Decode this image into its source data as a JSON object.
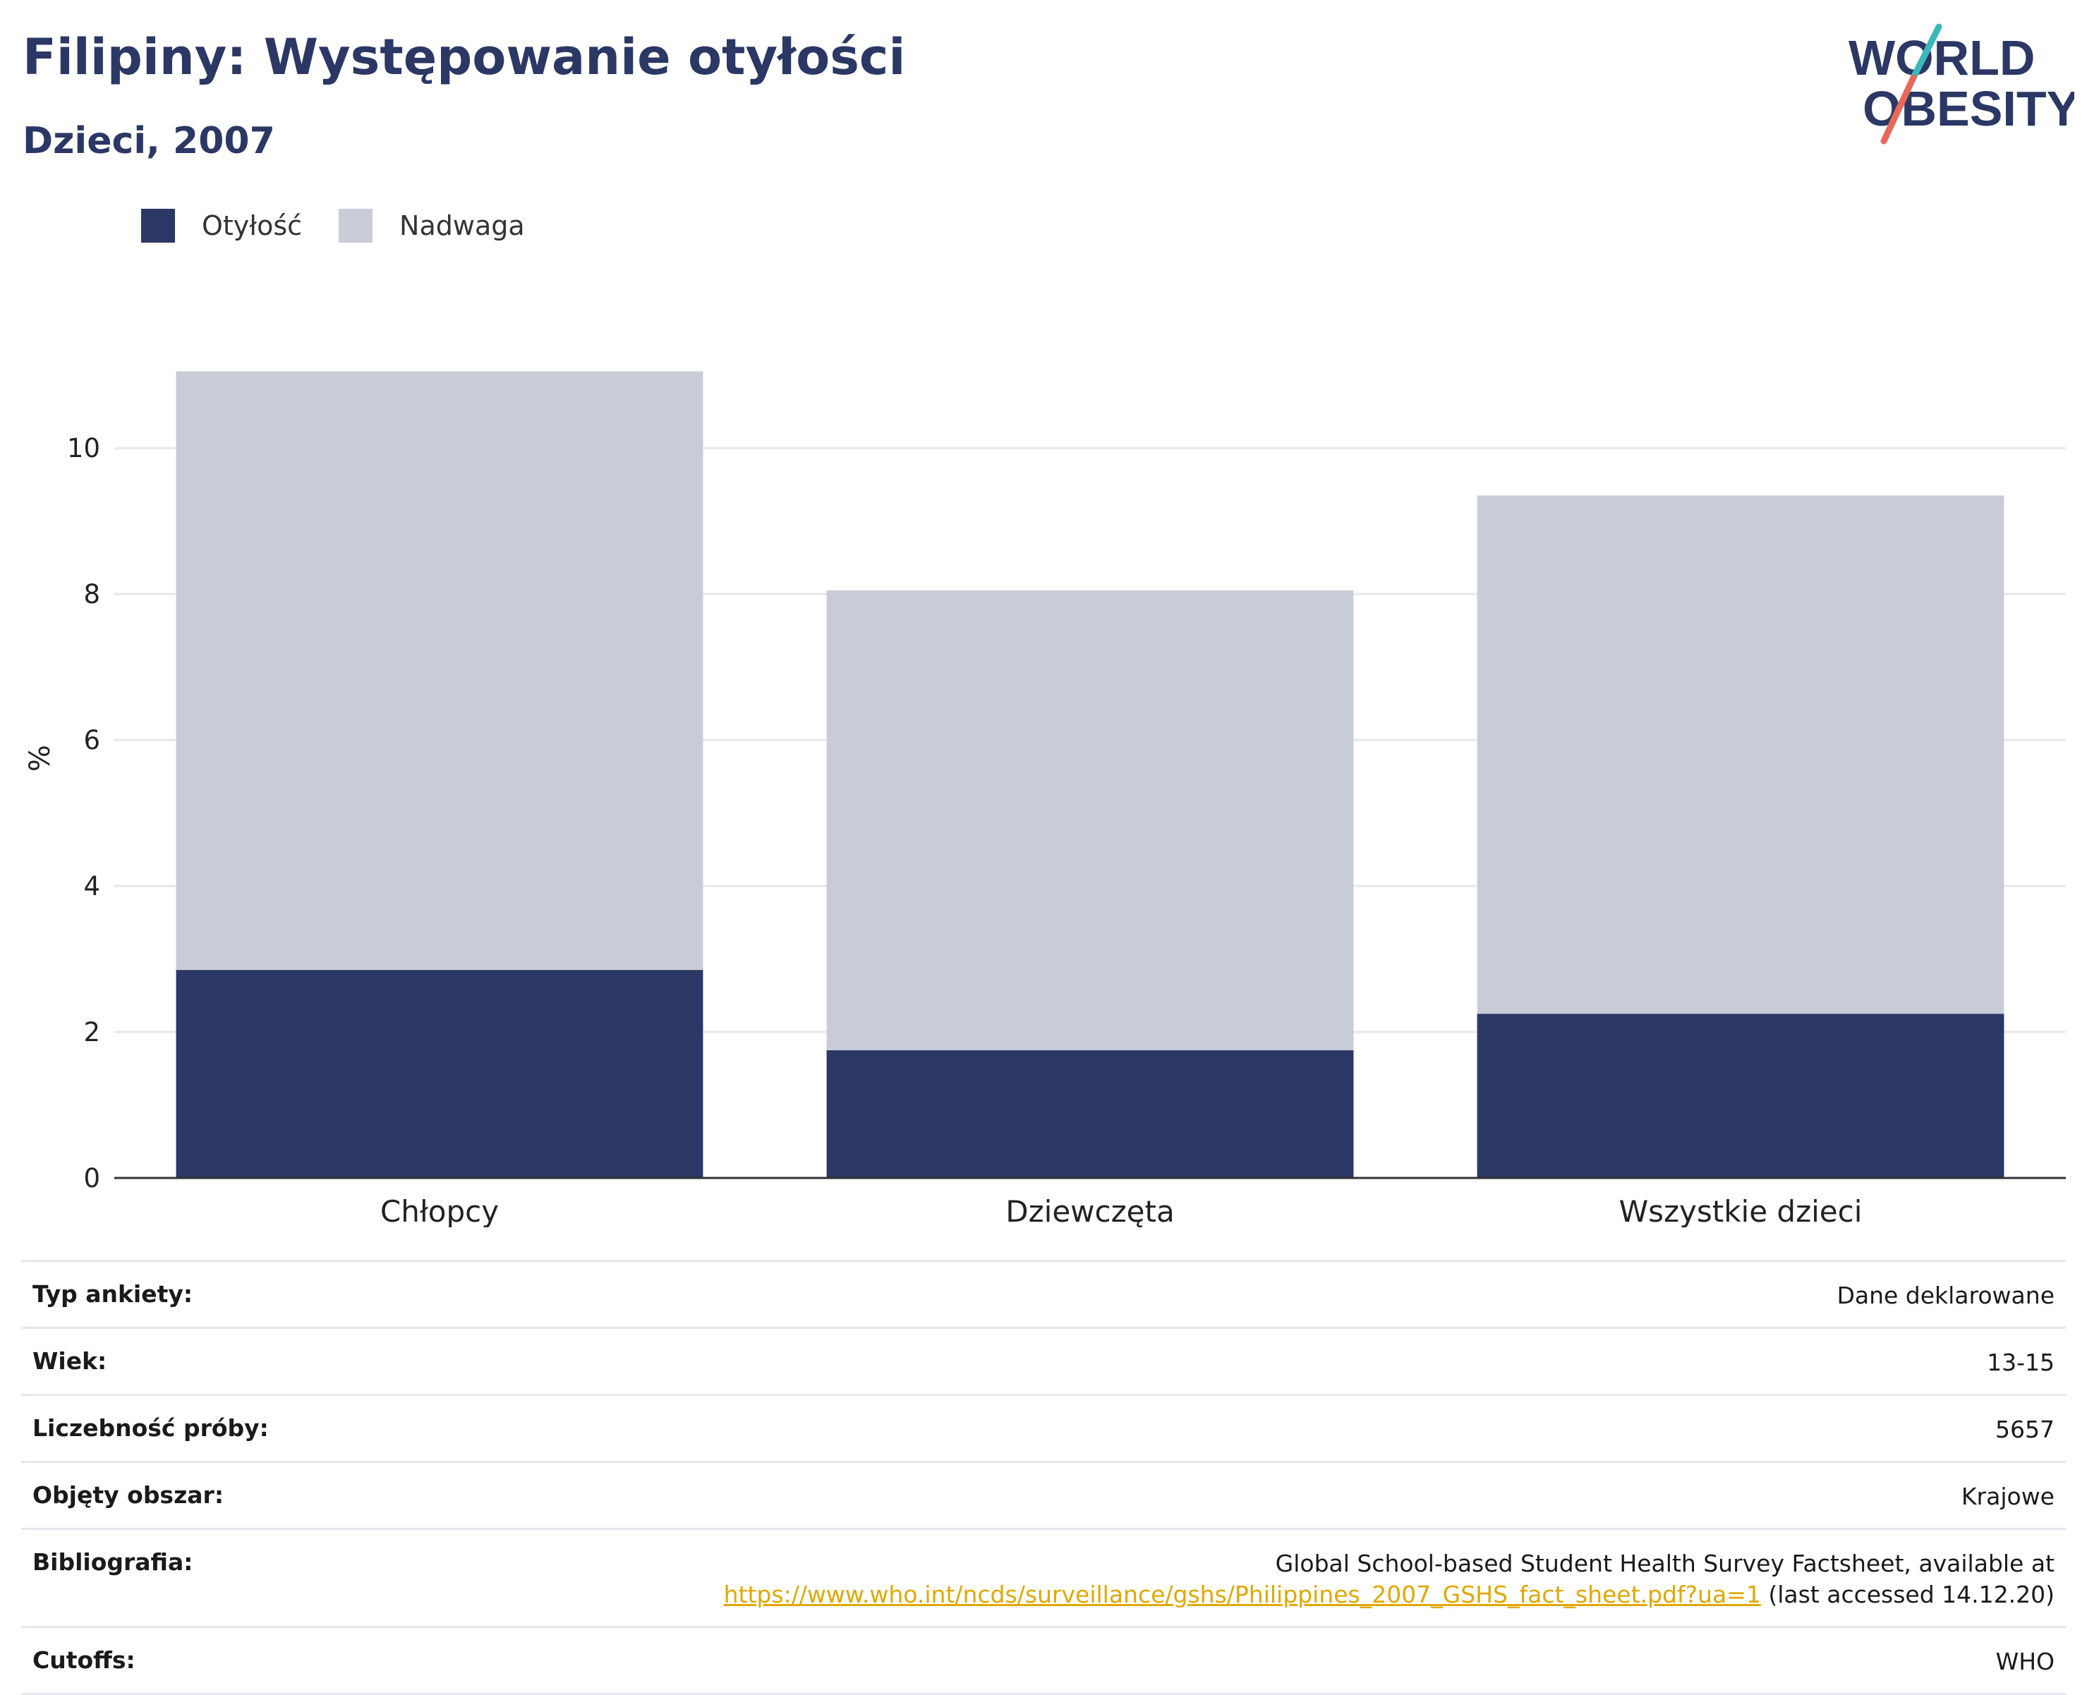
{
  "header": {
    "title": "Filipiny: Występowanie otyłości",
    "subtitle": "Dzieci, 2007"
  },
  "logo": {
    "line1": "WORLD",
    "line2": "OBESITY"
  },
  "legend": [
    {
      "label": "Otyłość",
      "color": "#2b3764"
    },
    {
      "label": "Nadwaga",
      "color": "#c9ccd8"
    }
  ],
  "chart_data": {
    "type": "bar",
    "stacked": true,
    "categories": [
      "Chłopcy",
      "Dziewczęta",
      "Wszystkie dzieci"
    ],
    "series": [
      {
        "name": "Otyłość",
        "values": [
          2.85,
          1.75,
          2.25
        ],
        "color": "#2b3764"
      },
      {
        "name": "Nadwaga",
        "values": [
          8.2,
          6.3,
          7.1
        ],
        "color": "#c9ccd8"
      }
    ],
    "ylabel": "%",
    "ylim": [
      0,
      11.5
    ],
    "yticks": [
      0,
      2,
      4,
      6,
      8,
      10
    ],
    "grid": true,
    "legend_position": "top-left"
  },
  "info": {
    "rows": [
      {
        "label": "Typ ankiety:",
        "value": "Dane deklarowane"
      },
      {
        "label": "Wiek:",
        "value": "13-15"
      },
      {
        "label": "Liczebność próby:",
        "value": "5657"
      },
      {
        "label": "Objęty obszar:",
        "value": "Krajowe"
      }
    ],
    "bibliography": {
      "label": "Bibliografia:",
      "line1": "Global School-based Student Health Survey Factsheet, available at",
      "link": "https://www.who.int/ncds/surveillance/gshs/Philippines_2007_GSHS_fact_sheet.pdf?ua=1",
      "suffix": " (last accessed 14.12.20)"
    },
    "cutoffs": {
      "label": "Cutoffs:",
      "value": "WHO"
    }
  }
}
